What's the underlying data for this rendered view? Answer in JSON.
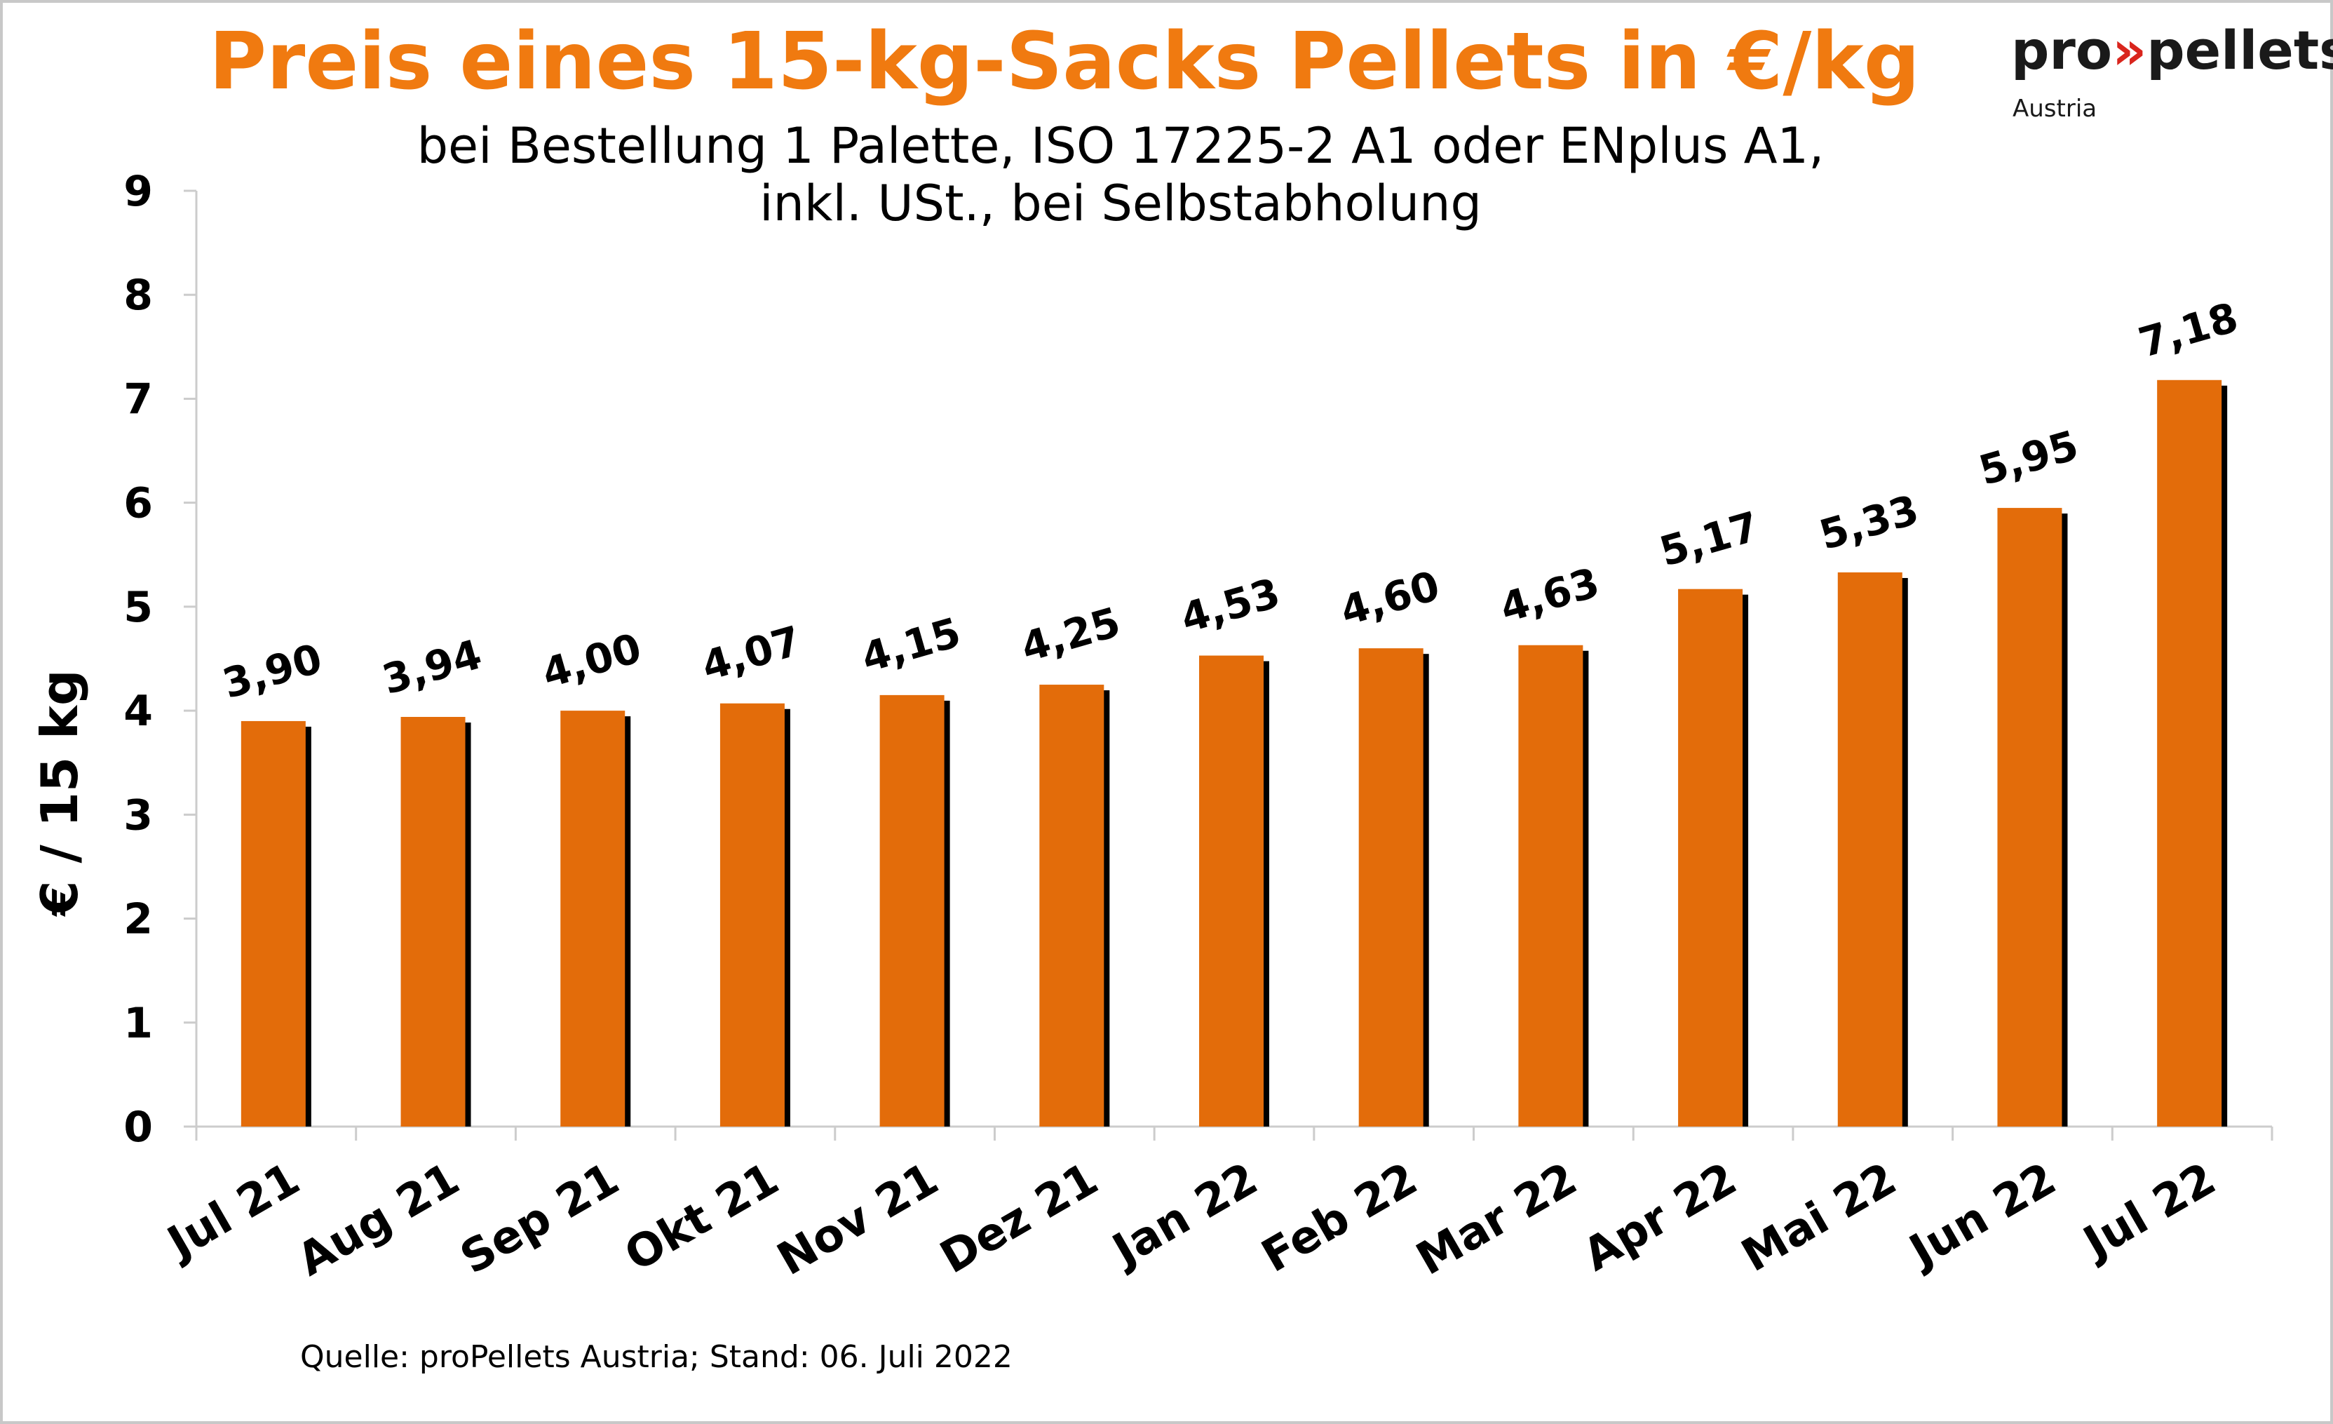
{
  "colors": {
    "title": "#F07A10",
    "bar": "#E36C0A",
    "shadow": "#000000",
    "axis": "#cccccc",
    "logo_accent": "#D9251D"
  },
  "logo": {
    "part_pro": "pro",
    "part_arrows": "»",
    "part_pellets": "pellets",
    "sub": "Austria"
  },
  "chart_data": {
    "type": "bar",
    "title": "Preis eines 15-kg-Sacks Pellets in €/kg",
    "subtitle_line1": "bei Bestellung 1 Palette, ISO 17225-2 A1 oder ENplus A1,",
    "subtitle_line2": "inkl. USt., bei Selbstabholung",
    "xlabel": "",
    "ylabel": "€ / 15 kg",
    "ylim": [
      0,
      9
    ],
    "yticks": [
      "0",
      "1",
      "2",
      "3",
      "4",
      "5",
      "6",
      "7",
      "8",
      "9"
    ],
    "categories": [
      "Jul 21",
      "Aug 21",
      "Sep 21",
      "Okt 21",
      "Nov 21",
      "Dez 21",
      "Jan 22",
      "Feb 22",
      "Mar 22",
      "Apr 22",
      "Mai 22",
      "Jun 22",
      "Jul 22"
    ],
    "values": [
      3.9,
      3.94,
      4.0,
      4.07,
      4.15,
      4.25,
      4.53,
      4.6,
      4.63,
      5.17,
      5.33,
      5.95,
      7.18
    ],
    "value_labels": [
      "3,90",
      "3,94",
      "4,00",
      "4,07",
      "4,15",
      "4,25",
      "4,53",
      "4,60",
      "4,63",
      "5,17",
      "5,33",
      "5,95",
      "7,18"
    ],
    "grid": false,
    "legend": "none"
  },
  "source": "Quelle: proPellets Austria; Stand: 06. Juli 2022"
}
